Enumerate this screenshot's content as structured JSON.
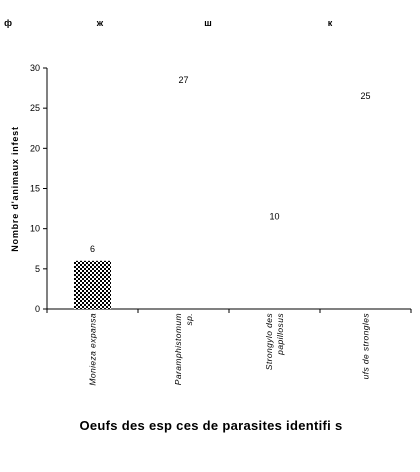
{
  "chart_data": {
    "type": "bar",
    "title": "",
    "xlabel": "Oeufs des esp ces de parasites identifi s",
    "ylabel": "Nombre d'animaux infest",
    "ylim": [
      0,
      30
    ],
    "yticks": [
      0,
      5,
      10,
      15,
      20,
      25,
      30
    ],
    "categories": [
      [
        "Monieza expansa"
      ],
      [
        "Paramphistomum",
        "sp."
      ],
      [
        "Strongylo des",
        "papillosus"
      ],
      [
        "ufs de strongles"
      ]
    ],
    "values": [
      6,
      27,
      10,
      25
    ],
    "data_labels": [
      "6",
      "27",
      "10",
      "25"
    ],
    "bar_fill": [
      "checkered",
      "none",
      "none",
      "none"
    ],
    "grid": false,
    "legend": "none",
    "top_marks": [
      "ф",
      "ж",
      "ш",
      "к"
    ]
  }
}
